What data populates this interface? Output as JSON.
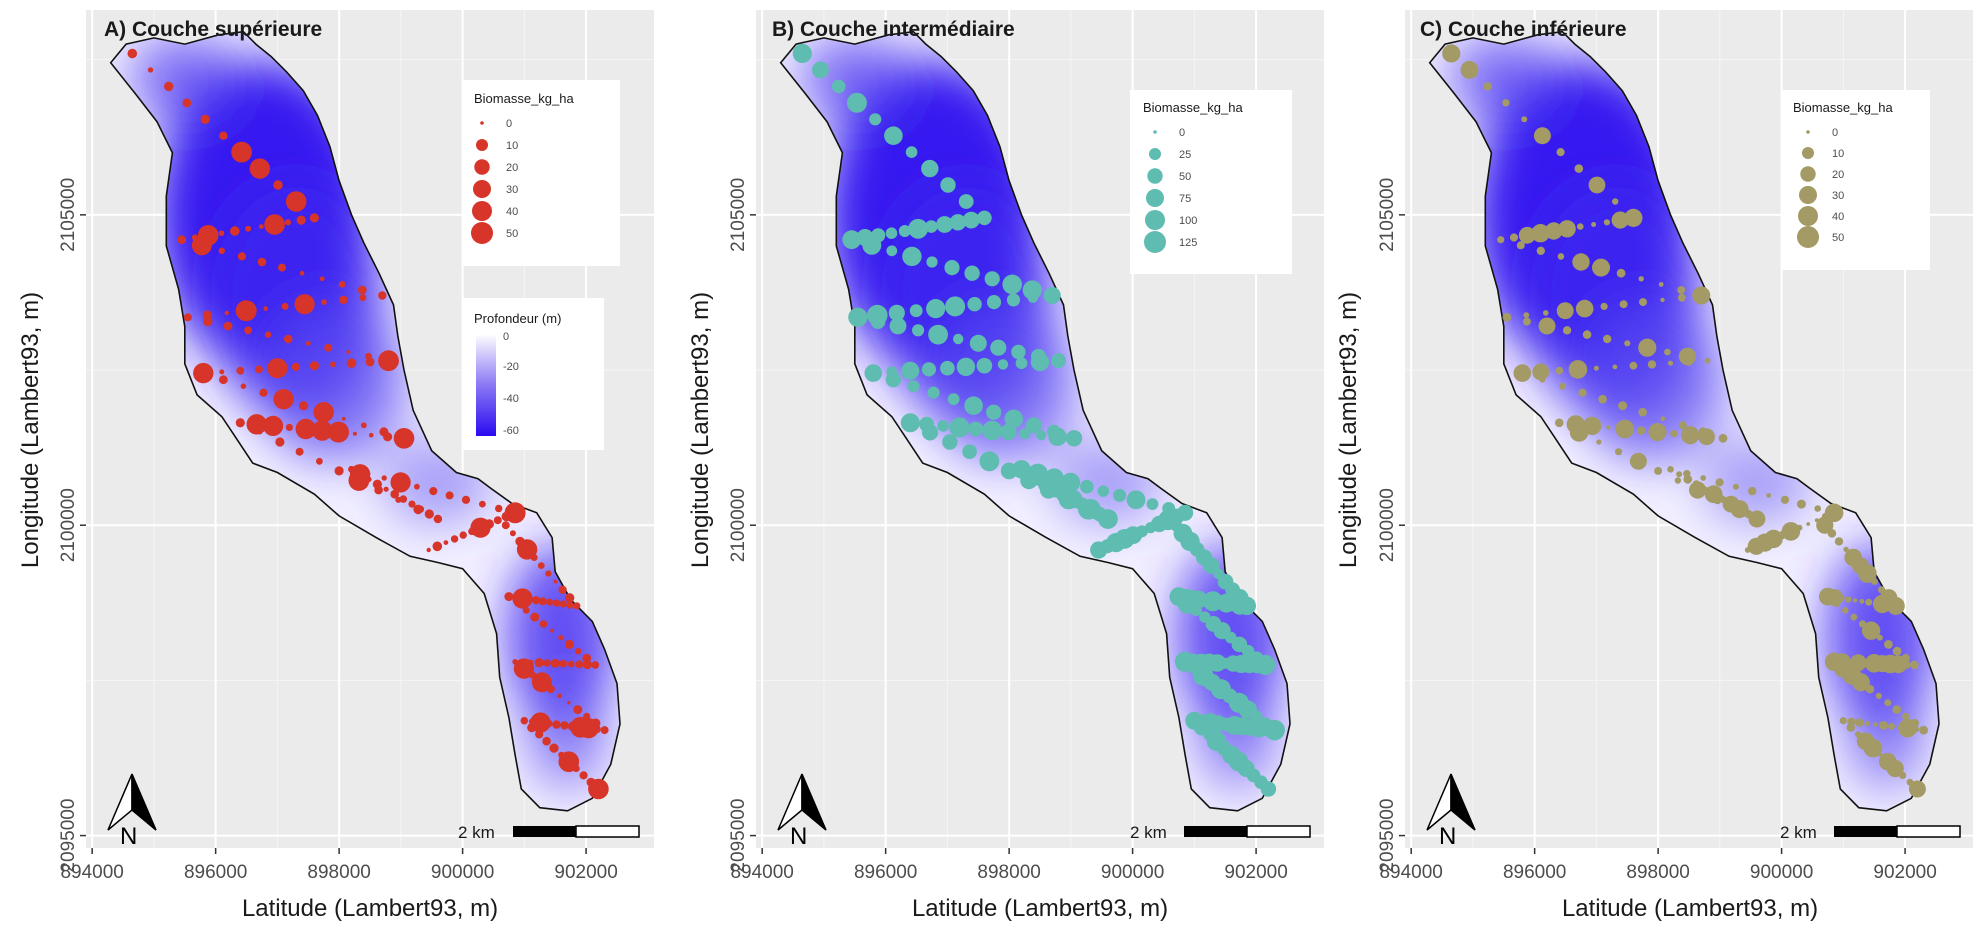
{
  "chart_data": [
    {
      "type": "map",
      "title": "A) Couche supérieure",
      "xlabel": "Latitude (Lambert93, m)",
      "ylabel": "Longitude (Lambert93, m)",
      "x_ticks": [
        "894000",
        "896000",
        "898000",
        "900000",
        "902000"
      ],
      "y_ticks": [
        "2095000",
        "2100000",
        "2105000"
      ],
      "xlim": [
        893900,
        903100
      ],
      "ylim": [
        2094800,
        2108300
      ],
      "grid": true,
      "point_color": "#d7342a",
      "size_legend": {
        "title": "Biomasse_kg_ha",
        "values": [
          "0",
          "10",
          "20",
          "30",
          "40",
          "50"
        ],
        "max": 50
      },
      "depth_legend": {
        "title": "Profondeur (m)",
        "values": [
          "0",
          "-20",
          "-40",
          "-60"
        ],
        "colors": [
          "#ffffff",
          "#2a0bf0"
        ]
      },
      "north_arrow": "N",
      "scale_bar": "2 km"
    },
    {
      "type": "map",
      "title": "B) Couche intermédiaire",
      "xlabel": "Latitude (Lambert93, m)",
      "ylabel": "Longitude (Lambert93, m)",
      "x_ticks": [
        "894000",
        "896000",
        "898000",
        "900000",
        "902000"
      ],
      "y_ticks": [
        "2095000",
        "2100000",
        "2105000"
      ],
      "xlim": [
        893900,
        903100
      ],
      "ylim": [
        2094800,
        2108300
      ],
      "grid": true,
      "point_color": "#5fbcb0",
      "size_legend": {
        "title": "Biomasse_kg_ha",
        "values": [
          "0",
          "25",
          "50",
          "75",
          "100",
          "125"
        ],
        "max": 125
      },
      "north_arrow": "N",
      "scale_bar": "2 km"
    },
    {
      "type": "map",
      "title": "C) Couche inférieure",
      "xlabel": "Latitude (Lambert93, m)",
      "ylabel": "Longitude (Lambert93, m)",
      "x_ticks": [
        "894000",
        "896000",
        "898000",
        "900000",
        "902000"
      ],
      "y_ticks": [
        "2095000",
        "2100000",
        "2105000"
      ],
      "xlim": [
        893900,
        903100
      ],
      "ylim": [
        2094800,
        2108300
      ],
      "grid": true,
      "point_color": "#a39a66",
      "size_legend": {
        "title": "Biomasse_kg_ha",
        "values": [
          "0",
          "10",
          "20",
          "30",
          "40",
          "50"
        ],
        "max": 50
      },
      "north_arrow": "N",
      "scale_bar": "2 km"
    }
  ]
}
